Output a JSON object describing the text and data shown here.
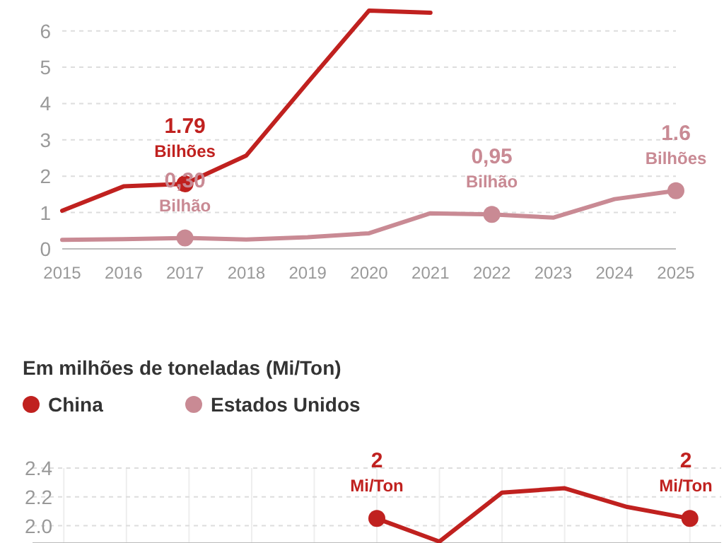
{
  "chart_data": [
    {
      "type": "line",
      "x": [
        2015,
        2016,
        2017,
        2018,
        2019,
        2020,
        2021,
        2022,
        2023,
        2024,
        2025
      ],
      "xlim": [
        2015,
        2025
      ],
      "xticks": [
        2015,
        2016,
        2017,
        2018,
        2019,
        2020,
        2021,
        2022,
        2023,
        2024,
        2025
      ],
      "ylim": [
        0,
        6.85
      ],
      "yticks": [
        0,
        1,
        2,
        3,
        4,
        5,
        6
      ],
      "grid": "y",
      "series": [
        {
          "color": "#c0211f",
          "values": [
            1.05,
            1.72,
            1.79,
            2.57,
            4.58,
            6.56,
            6.5,
            null,
            null,
            null,
            null
          ],
          "value_labels": [
            null,
            null,
            "1.79\nBilhões",
            null,
            null,
            null,
            null,
            null,
            null,
            null,
            null
          ]
        },
        {
          "color": "#c98a94",
          "values": [
            0.25,
            0.27,
            0.3,
            0.26,
            0.32,
            0.43,
            0.98,
            0.95,
            0.86,
            1.37,
            1.6
          ],
          "value_labels": [
            null,
            null,
            "0,30\nBilhão",
            null,
            null,
            null,
            null,
            "0,95\nBilhão",
            null,
            null,
            "1.6\nBilhões"
          ]
        }
      ],
      "tick_labels": true
    },
    {
      "type": "line",
      "title": "Em milhões de toneladas (Mi/Ton)",
      "legend": "top",
      "categories": [
        null,
        null,
        null,
        null,
        null,
        null,
        null,
        null,
        null,
        null,
        null
      ],
      "ylim": [
        1.88,
        2.4
      ],
      "yticks": [
        {
          "value": 2,
          "label": "2.0"
        },
        2.2,
        2.4
      ],
      "grid": true,
      "series": [
        {
          "name": "China",
          "color": "#c0211f",
          "values": [
            null,
            null,
            null,
            null,
            null,
            2.05,
            1.89,
            2.23,
            2.26,
            2.13,
            2.05
          ],
          "value_labels": [
            null,
            null,
            null,
            null,
            null,
            "2\nMi/Ton",
            null,
            null,
            null,
            null,
            "2\nMi/Ton"
          ]
        },
        {
          "name": "Estados Unidos",
          "color": "#c98a94",
          "values": [
            null,
            null,
            null,
            null,
            null,
            null,
            null,
            null,
            null,
            null,
            null
          ]
        }
      ]
    }
  ]
}
